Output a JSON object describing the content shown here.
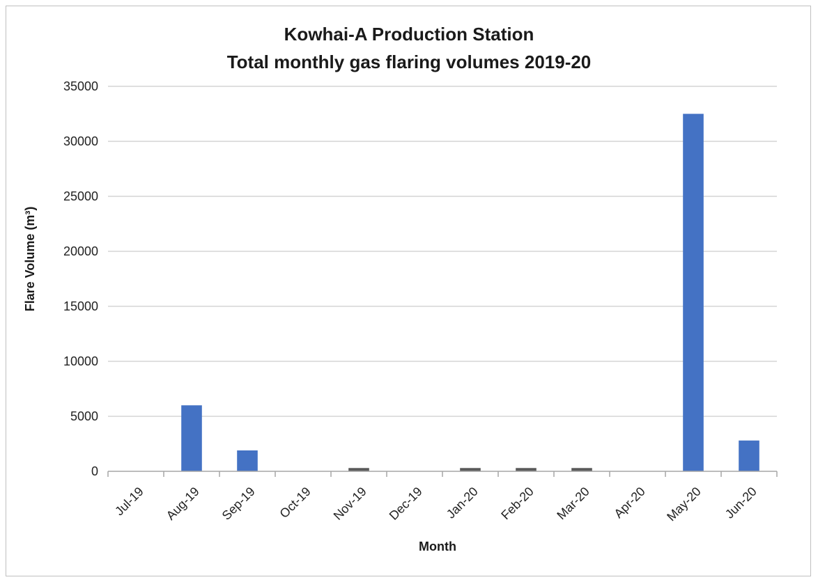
{
  "chart_data": {
    "type": "bar",
    "title": "Kowhai-A Production Station",
    "subtitle": "Total monthly gas flaring volumes 2019-20",
    "xlabel": "Month",
    "ylabel": "Flare Volume (m³)",
    "ylim": [
      0,
      35000
    ],
    "yticks": [
      0,
      5000,
      10000,
      15000,
      20000,
      25000,
      30000,
      35000
    ],
    "grid": true,
    "categories": [
      "Jul-19",
      "Aug-19",
      "Sep-19",
      "Oct-19",
      "Nov-19",
      "Dec-19",
      "Jan-20",
      "Feb-20",
      "Mar-20",
      "Apr-20",
      "May-20",
      "Jun-20"
    ],
    "values": [
      0,
      6000,
      1900,
      0,
      300,
      0,
      300,
      300,
      300,
      0,
      32500,
      2800
    ],
    "colors": {
      "bar": "#4472c4",
      "bar_small": "#5a5a5a",
      "grid": "#bfbfbf",
      "axis": "#a6a6a6"
    }
  }
}
